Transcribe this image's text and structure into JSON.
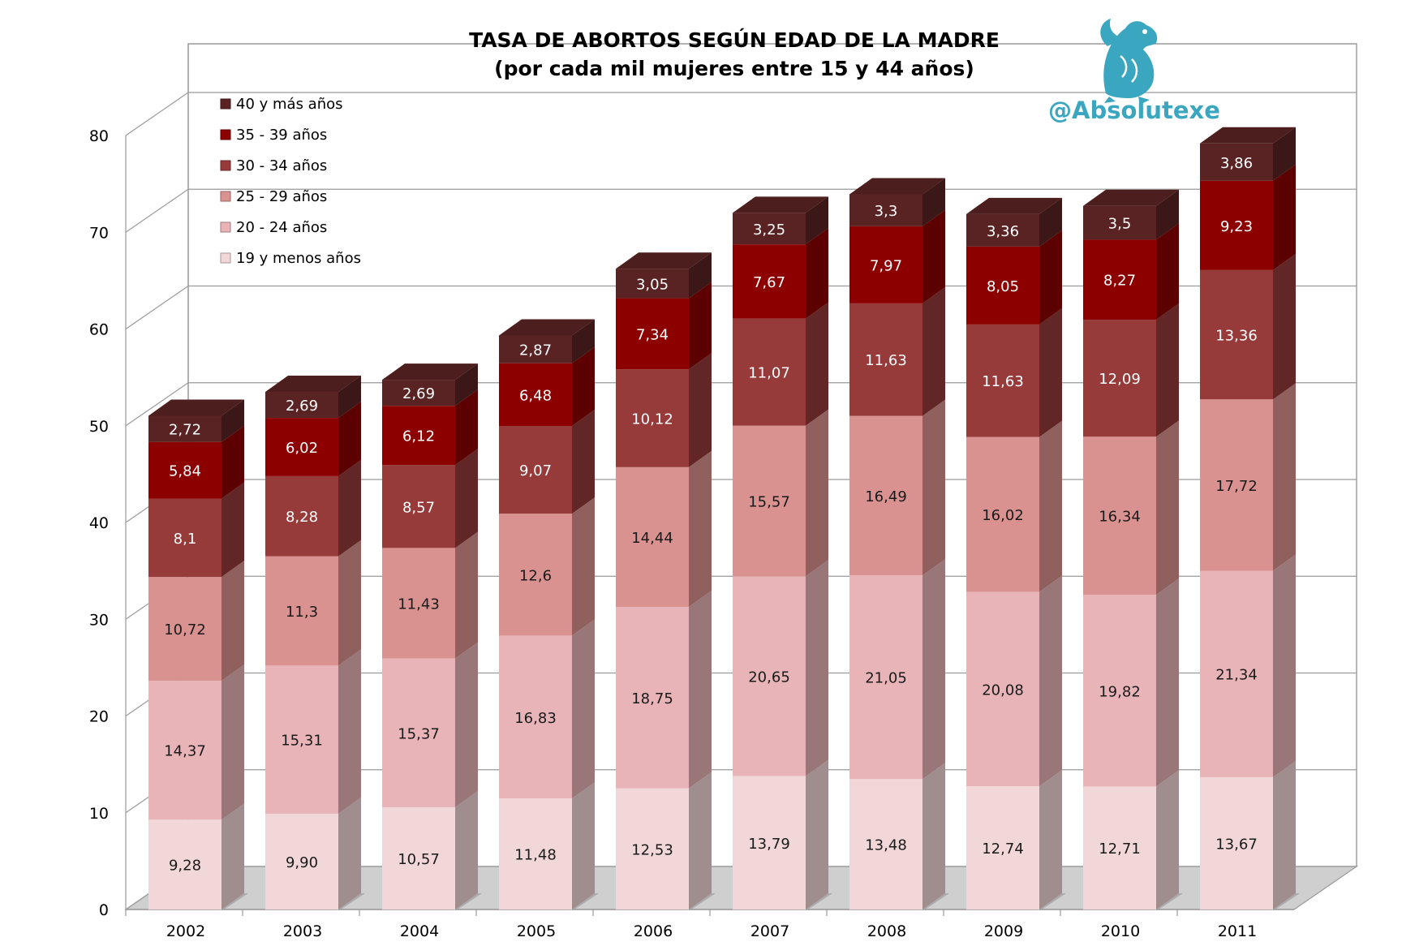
{
  "brand": {
    "handle": "@Absolutexe",
    "color": "#3aa6bf"
  },
  "chart_data": {
    "type": "bar",
    "stacked": true,
    "three_d": true,
    "title": "TASA DE ABORTOS SEGÚN EDAD DE LA MADRE",
    "subtitle": "(por cada mil mujeres entre 15 y 44 años)",
    "xlabel": "",
    "ylabel": "",
    "ylim": [
      0,
      80
    ],
    "yticks": [
      "0",
      "10",
      "20",
      "30",
      "40",
      "50",
      "60",
      "70",
      "80"
    ],
    "grid": true,
    "legend_position": "top-left",
    "categories": [
      "2002",
      "2003",
      "2004",
      "2005",
      "2006",
      "2007",
      "2008",
      "2009",
      "2010",
      "2011"
    ],
    "series": [
      {
        "name": "19 y menos años",
        "color": "#f2d7d9",
        "values": [
          9.28,
          9.9,
          10.57,
          11.48,
          12.53,
          13.79,
          13.48,
          12.74,
          12.71,
          13.67
        ],
        "labels": [
          "9,28",
          "9,90",
          "10,57",
          "11,48",
          "12,53",
          "13,79",
          "13,48",
          "12,74",
          "12,71",
          "13,67"
        ]
      },
      {
        "name": "20 - 24 años",
        "color": "#e8b4b7",
        "values": [
          14.37,
          15.31,
          15.37,
          16.83,
          18.75,
          20.65,
          21.05,
          20.08,
          19.82,
          21.34
        ],
        "labels": [
          "14,37",
          "15,31",
          "15,37",
          "16,83",
          "18,75",
          "20,65",
          "21,05",
          "20,08",
          "19,82",
          "21,34"
        ]
      },
      {
        "name": "25 - 29 años",
        "color": "#d9928f",
        "values": [
          10.72,
          11.3,
          11.43,
          12.6,
          14.44,
          15.57,
          16.49,
          16.02,
          16.34,
          17.72
        ],
        "labels": [
          "10,72",
          "11,3",
          "11,43",
          "12,6",
          "14,44",
          "15,57",
          "16,49",
          "16,02",
          "16,34",
          "17,72"
        ]
      },
      {
        "name": "30 - 34 años",
        "color": "#963a3a",
        "values": [
          8.1,
          8.28,
          8.57,
          9.07,
          10.12,
          11.07,
          11.63,
          11.63,
          12.09,
          13.36
        ],
        "labels": [
          "8,1",
          "8,28",
          "8,57",
          "9,07",
          "10,12",
          "11,07",
          "11,63",
          "11,63",
          "12,09",
          "13,36"
        ]
      },
      {
        "name": "35 - 39 años",
        "color": "#8c0000",
        "values": [
          5.84,
          6.02,
          6.12,
          6.48,
          7.34,
          7.67,
          7.97,
          8.05,
          8.27,
          9.23
        ],
        "labels": [
          "5,84",
          "6,02",
          "6,12",
          "6,48",
          "7,34",
          "7,67",
          "7,97",
          "8,05",
          "8,27",
          "9,23"
        ]
      },
      {
        "name": "40 y más años",
        "color": "#5a2323",
        "values": [
          2.72,
          2.69,
          2.69,
          2.87,
          3.05,
          3.25,
          3.3,
          3.36,
          3.5,
          3.86
        ],
        "labels": [
          "2,72",
          "2,69",
          "2,69",
          "2,87",
          "3,05",
          "3,25",
          "3,3",
          "3,36",
          "3,5",
          "3,86"
        ]
      }
    ]
  }
}
